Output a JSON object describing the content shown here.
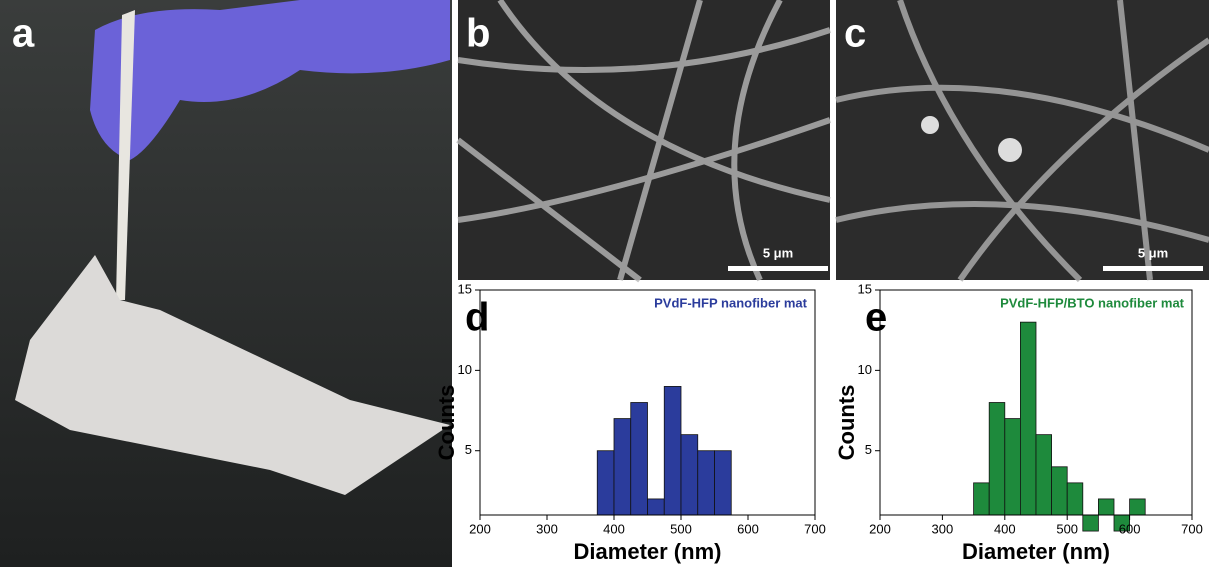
{
  "panels": {
    "a": "a",
    "b": "b",
    "c": "c"
  },
  "scale_bars": [
    "5 μm",
    "5 μm"
  ],
  "chart_data": [
    {
      "type": "histogram",
      "panel_label": "d",
      "annotation": "PVdF-HFP nanofiber mat",
      "xlabel": "Diameter (nm)",
      "ylabel": "Counts",
      "color": "#2b3c9c",
      "bins": [
        375,
        400,
        425,
        450,
        475,
        500,
        525,
        550,
        575
      ],
      "counts": [
        5,
        7,
        8,
        2,
        9,
        6,
        5,
        5
      ],
      "xlim": [
        200,
        700
      ],
      "xticks": [
        200,
        300,
        400,
        500,
        600,
        700
      ],
      "ylim": [
        1,
        15
      ],
      "yticks": [
        5,
        10,
        15
      ]
    },
    {
      "type": "histogram",
      "panel_label": "e",
      "annotation": "PVdF-HFP/BTO nanofiber mat",
      "xlabel": "Diameter (nm)",
      "ylabel": "Counts",
      "color": "#1e8a3c",
      "bins": [
        350,
        375,
        400,
        425,
        450,
        475,
        500,
        525,
        550,
        575,
        600,
        625
      ],
      "counts": [
        3,
        8,
        7,
        13,
        6,
        4,
        3,
        0,
        2,
        0,
        2
      ],
      "xlim": [
        200,
        700
      ],
      "xticks": [
        200,
        300,
        400,
        500,
        600,
        700
      ],
      "ylim": [
        1,
        15
      ],
      "yticks": [
        5,
        10,
        15
      ]
    }
  ]
}
